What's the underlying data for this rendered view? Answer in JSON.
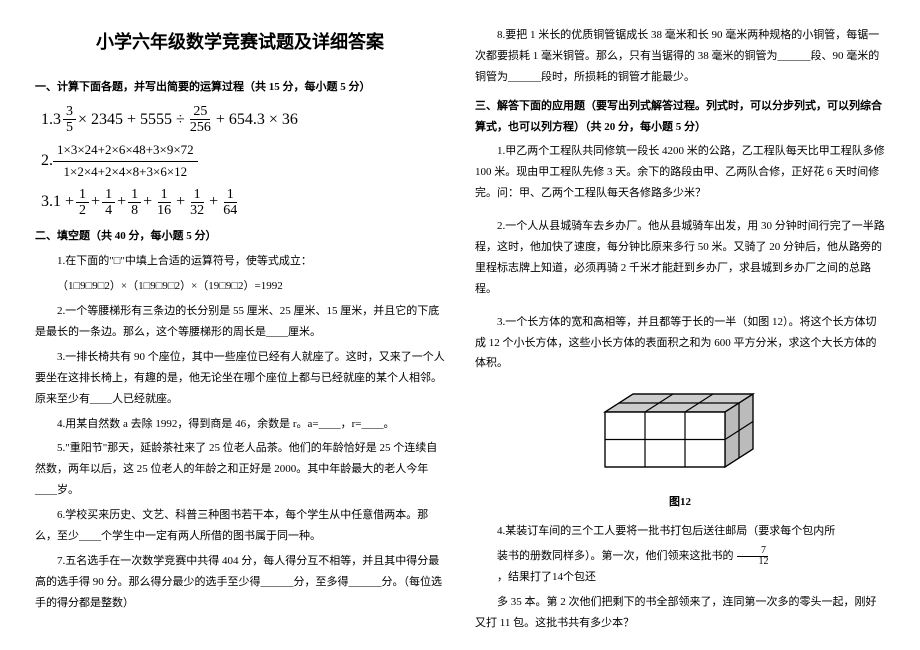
{
  "title": "小学六年级数学竞赛试题及详细答案",
  "section1": {
    "heading": "一、计算下面各题，并写出简要的运算过程（共 15 分，每小题 5 分）",
    "formula1_prefix": "1.",
    "formula1_whole": "3",
    "formula1_f1num": "3",
    "formula1_f1den": "5",
    "formula1_mid1": " × 2345 + 5555 ÷ ",
    "formula1_f2num": "25",
    "formula1_f2den": "256",
    "formula1_mid2": " + 654.3 × 36",
    "formula2_prefix": "2.",
    "formula2_num": "1×3×24+2×6×48+3×9×72",
    "formula2_den": "1×2×4+2×4×8+3×6×12",
    "formula3_prefix": "3.",
    "formula3_lead": "1 + ",
    "formula3_parts": [
      {
        "num": "1",
        "den": "2"
      },
      {
        "num": "1",
        "den": "4"
      },
      {
        "num": "1",
        "den": "8"
      },
      {
        "num": "1",
        "den": "16"
      },
      {
        "num": "1",
        "den": "32"
      },
      {
        "num": "1",
        "den": "64"
      }
    ]
  },
  "section2": {
    "heading": "二、填空题（共 40 分，每小题 5 分）",
    "q1a": "1.在下面的\"□\"中填上合适的运算符号，使等式成立：",
    "q1b": "（1□9□9□2）×（1□9□9□2）×（19□9□2）=1992",
    "q2": "2.一个等腰梯形有三条边的长分别是 55 厘米、25 厘米、15 厘米，并且它的下底是最长的一条边。那么，这个等腰梯形的周长是____厘米。",
    "q3": "3.一排长椅共有 90 个座位，其中一些座位已经有人就座了。这时，又来了一个人要坐在这排长椅上，有趣的是，他无论坐在哪个座位上都与已经就座的某个人相邻。原来至少有____人已经就座。",
    "q4": "4.用某自然数 a 去除 1992，得到商是 46，余数是 r。a=____，r=____。",
    "q5": "5.\"重阳节\"那天，延龄茶社来了 25 位老人品茶。他们的年龄恰好是 25 个连续自然数，两年以后，这 25 位老人的年龄之和正好是 2000。其中年龄最大的老人今年____岁。",
    "q6": "6.学校买来历史、文艺、科普三种图书若干本，每个学生从中任意借两本。那么，至少____个学生中一定有两人所借的图书属于同一种。",
    "q7": "7.五名选手在一次数学竞赛中共得 404 分，每人得分互不相等，并且其中得分最高的选手得 90 分。那么得分最少的选手至少得______分，至多得______分。（每位选手的得分都是整数）"
  },
  "rightcol": {
    "q8": "8.要把 1 米长的优质铜管锯成长 38 毫米和长 90 毫米两种规格的小铜管，每锯一次都要损耗 1 毫米铜管。那么，只有当锯得的 38 毫米的铜管为______段、90 毫米的铜管为______段时，所损耗的铜管才能最少。",
    "section3_heading": "三、解答下面的应用题（要写出列式解答过程。列式时，可以分步列式，可以列综合算式，也可以列方程）（共 20 分，每小题 5 分）",
    "q3_1": "1.甲乙两个工程队共同修筑一段长 4200 米的公路，乙工程队每天比甲工程队多修 100 米。现由甲工程队先修 3 天。余下的路段由甲、乙两队合修，正好花 6 天时间修完。问：甲、乙两个工程队每天各修路多少米？",
    "q3_2": "2.一个人从县城骑车去乡办厂。他从县城骑车出发，用 30 分钟时间行完了一半路程，这时，他加快了速度，每分钟比原来多行 50 米。又骑了 20 分钟后，他从路旁的里程标志牌上知道，必须再骑 2 千米才能赶到乡办厂，求县城到乡办厂之间的总路程。",
    "q3_3": "3.一个长方体的宽和高相等，并且都等于长的一半（如图 12）。将这个长方体切成 12 个小长方体，这些小长方体的表面积之和为 600 平方分米，求这个大长方体的体积。",
    "figure_label": "图12",
    "q3_4a": "4.某装订车间的三个工人要将一批书打包后送往邮局（要求每个包内所",
    "q3_4b_pre": "装书的册数同样多）。第一次，他们领来这批书的",
    "q3_4b_num": "7",
    "q3_4b_den": "12",
    "q3_4b_post": "，结果打了14个包还",
    "q3_4c": "多 35 本。第 2 次他们把剩下的书全部领来了，连同第一次多的零头一起，刚好又打 11 包。这批书共有多少本？"
  },
  "figure": {
    "width": 170,
    "height": 100,
    "bg": "#ffffff",
    "stroke": "#000000",
    "stroke_width": 1.2
  }
}
